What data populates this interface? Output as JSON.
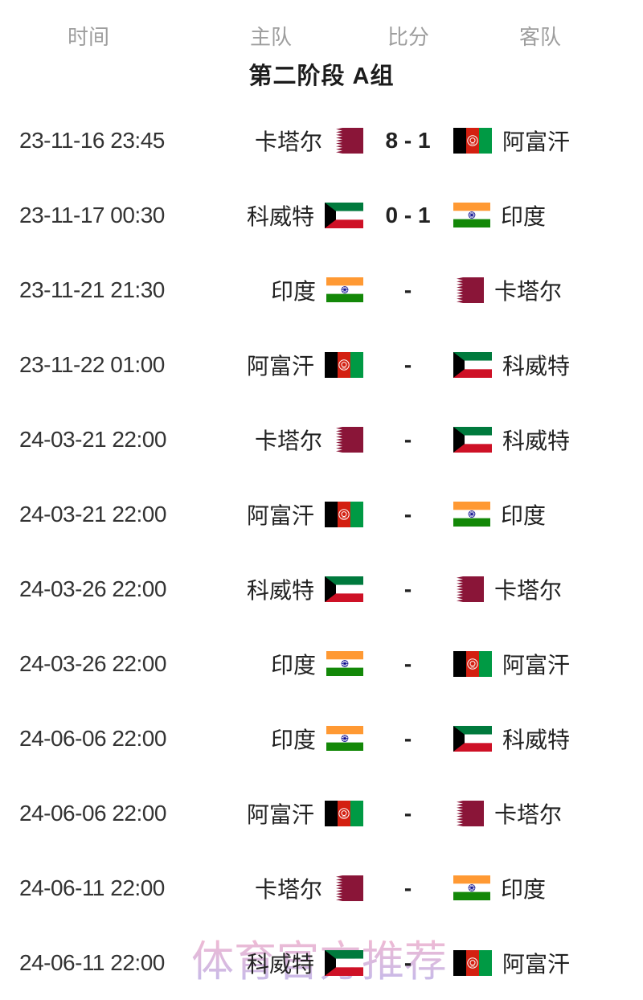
{
  "table": {
    "headers": [
      {
        "label": "时间"
      },
      {
        "label": "主队"
      },
      {
        "label": "比分"
      },
      {
        "label": "客队"
      }
    ],
    "section_title": "第二阶段 A组",
    "rows": [
      {
        "time": "23-11-16 23:45",
        "home": "卡塔尔",
        "home_flag": "qatar",
        "score": "8 - 1",
        "away": "阿富汗",
        "away_flag": "afghanistan"
      },
      {
        "time": "23-11-17 00:30",
        "home": "科威特",
        "home_flag": "kuwait",
        "score": "0 - 1",
        "away": "印度",
        "away_flag": "india"
      },
      {
        "time": "23-11-21 21:30",
        "home": "印度",
        "home_flag": "india",
        "score": "-",
        "away": "卡塔尔",
        "away_flag": "qatar"
      },
      {
        "time": "23-11-22 01:00",
        "home": "阿富汗",
        "home_flag": "afghanistan",
        "score": "-",
        "away": "科威特",
        "away_flag": "kuwait"
      },
      {
        "time": "24-03-21 22:00",
        "home": "卡塔尔",
        "home_flag": "qatar",
        "score": "-",
        "away": "科威特",
        "away_flag": "kuwait"
      },
      {
        "time": "24-03-21 22:00",
        "home": "阿富汗",
        "home_flag": "afghanistan",
        "score": "-",
        "away": "印度",
        "away_flag": "india"
      },
      {
        "time": "24-03-26 22:00",
        "home": "科威特",
        "home_flag": "kuwait",
        "score": "-",
        "away": "卡塔尔",
        "away_flag": "qatar"
      },
      {
        "time": "24-03-26 22:00",
        "home": "印度",
        "home_flag": "india",
        "score": "-",
        "away": "阿富汗",
        "away_flag": "afghanistan"
      },
      {
        "time": "24-06-06 22:00",
        "home": "印度",
        "home_flag": "india",
        "score": "-",
        "away": "科威特",
        "away_flag": "kuwait"
      },
      {
        "time": "24-06-06 22:00",
        "home": "阿富汗",
        "home_flag": "afghanistan",
        "score": "-",
        "away": "卡塔尔",
        "away_flag": "qatar"
      },
      {
        "time": "24-06-11 22:00",
        "home": "卡塔尔",
        "home_flag": "qatar",
        "score": "-",
        "away": "印度",
        "away_flag": "india"
      },
      {
        "time": "24-06-11 22:00",
        "home": "科威特",
        "home_flag": "kuwait",
        "score": "-",
        "away": "阿富汗",
        "away_flag": "afghanistan"
      }
    ]
  },
  "watermark": {
    "text": "体育官方推荐"
  },
  "colors": {
    "header_text": "#9e9e9e",
    "title_text": "#1c1c1c",
    "time_text": "#333333",
    "team_text": "#222222",
    "score_text": "#222222",
    "watermark_top": "#f3aac6",
    "watermark_bottom": "#b4a8e6",
    "qatar_maroon": "#8A1538",
    "kuwait_green": "#007A3D",
    "kuwait_red": "#CE1126",
    "kuwait_black": "#000000",
    "india_saffron": "#FF9933",
    "india_green": "#138808",
    "india_navy": "#000088",
    "afghan_black": "#000000",
    "afghan_red": "#D32011",
    "afghan_green": "#009A44"
  }
}
